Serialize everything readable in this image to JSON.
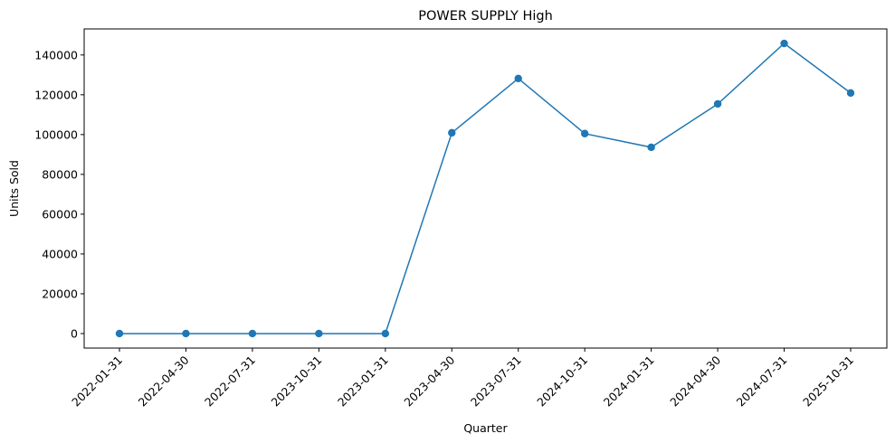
{
  "chart_data": {
    "type": "line",
    "title": "POWER SUPPLY High",
    "xlabel": "Quarter",
    "ylabel": "Units Sold",
    "categories": [
      "2022-01-31",
      "2022-04-30",
      "2022-07-31",
      "2023-10-31",
      "2023-01-31",
      "2023-04-30",
      "2023-07-31",
      "2024-10-31",
      "2024-01-31",
      "2024-04-30",
      "2024-07-31",
      "2025-10-31"
    ],
    "series": [
      {
        "values": [
          0,
          0,
          0,
          0,
          0,
          100900,
          128200,
          100500,
          93600,
          115400,
          145800,
          120900
        ],
        "color": "#1f77b4",
        "marker": "circle"
      }
    ],
    "ylim": [
      -7290,
      153090
    ],
    "yticks": [
      0,
      20000,
      40000,
      60000,
      80000,
      100000,
      120000,
      140000
    ],
    "grid": false,
    "legend": "none"
  }
}
